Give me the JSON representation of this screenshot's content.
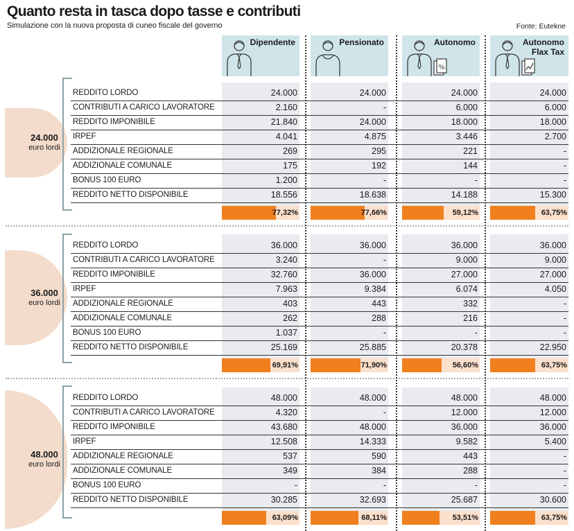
{
  "header": {
    "title": "Quanto resta in tasca dopo tasse e contributi",
    "subtitle": "Simulazione con la nuova proposta di cuneo fiscale del governo",
    "source": "Fonte: Eutekne"
  },
  "columns": [
    {
      "label": [
        "Dipendente"
      ],
      "icon": "employee-icon"
    },
    {
      "label": [
        "Pensionato"
      ],
      "icon": "pensioner-icon"
    },
    {
      "label": [
        "Autonomo"
      ],
      "icon": "self-employed-icon"
    },
    {
      "label": [
        "Autonomo",
        "Flax Tax"
      ],
      "icon": "flat-tax-icon"
    }
  ],
  "row_labels": [
    "REDDITO LORDO",
    "CONTRIBUTI A CARICO LAVORATORE",
    "REDDITO IMPONIBILE",
    "IRPEF",
    "ADDIZIONALE REGIONALE",
    "ADDIZIONALE COMUNALE",
    "BONUS 100 EURO",
    "REDDITO NETTO DISPONIBILE"
  ],
  "sections": [
    {
      "amount": "24.000",
      "unit": "euro lordi",
      "values": [
        [
          "24.000",
          "24.000",
          "24.000",
          "24.000"
        ],
        [
          "2.160",
          "-",
          "6.000",
          "6.000"
        ],
        [
          "21.840",
          "24.000",
          "18.000",
          "18.000"
        ],
        [
          "4.041",
          "4.875",
          "3.446",
          "2.700"
        ],
        [
          "269",
          "295",
          "221",
          "-"
        ],
        [
          "175",
          "192",
          "144",
          "-"
        ],
        [
          "1.200",
          "-",
          "-",
          "-"
        ],
        [
          "18.556",
          "18.638",
          "14.188",
          "15.300"
        ]
      ],
      "percent_labels": [
        "77,32%",
        "77,66%",
        "59,12%",
        "63,75%"
      ],
      "percent_values": [
        77.32,
        77.66,
        59.12,
        63.75
      ]
    },
    {
      "amount": "36.000",
      "unit": "euro lordi",
      "values": [
        [
          "36.000",
          "36.000",
          "36.000",
          "36.000"
        ],
        [
          "3.240",
          "-",
          "9.000",
          "9.000"
        ],
        [
          "32.760",
          "36.000",
          "27.000",
          "27.000"
        ],
        [
          "7.963",
          "9.384",
          "6.074",
          "4.050"
        ],
        [
          "403",
          "443",
          "332",
          "-"
        ],
        [
          "262",
          "288",
          "216",
          "-"
        ],
        [
          "1.037",
          "-",
          "-",
          "-"
        ],
        [
          "25.169",
          "25.885",
          "20.378",
          "22.950"
        ]
      ],
      "percent_labels": [
        "69,91%",
        "71,90%",
        "56,60%",
        "63,75%"
      ],
      "percent_values": [
        69.91,
        71.9,
        56.6,
        63.75
      ]
    },
    {
      "amount": "48.000",
      "unit": "euro lordi",
      "values": [
        [
          "48.000",
          "48.000",
          "48.000",
          "48.000"
        ],
        [
          "4.320",
          "-",
          "12.000",
          "12.000"
        ],
        [
          "43.680",
          "48.000",
          "36.000",
          "36.000"
        ],
        [
          "12.508",
          "14.333",
          "9.582",
          "5.400"
        ],
        [
          "537",
          "590",
          "443",
          "-"
        ],
        [
          "349",
          "384",
          "288",
          "-"
        ],
        [
          "-",
          "-",
          "-",
          "-"
        ],
        [
          "30.285",
          "32.693",
          "25.687",
          "30.600"
        ]
      ],
      "percent_labels": [
        "63,09%",
        "68,11%",
        "53,51%",
        "63,75%"
      ],
      "percent_values": [
        63.09,
        68.11,
        53.51,
        63.75
      ]
    }
  ],
  "colors": {
    "header_bg": "#cfe5ea",
    "column_bg": "#e9ebf0",
    "bar_fill": "#f07f1e",
    "bar_bg": "#fbe0cc",
    "circle": "#f3dccb"
  }
}
